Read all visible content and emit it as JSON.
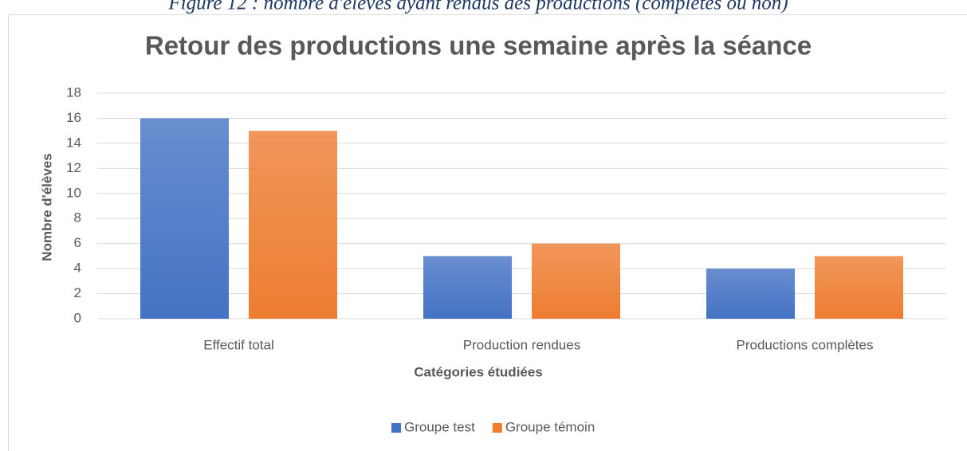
{
  "caption": "Figure 12 : nombre d'élèves ayant rendus des productions (complètes ou non)",
  "chart_data": {
    "type": "bar",
    "title": "Retour des productions une semaine après la séance",
    "x_label": "Catégories étudiées",
    "y_label": "Nombre d'élèves",
    "categories": [
      "Effectif total",
      "Production rendues",
      "Productions complètes"
    ],
    "series": [
      {
        "name": "Groupe test",
        "color": "#4472c4",
        "values": [
          16,
          5,
          4
        ]
      },
      {
        "name": "Groupe témoin",
        "color": "#ed7d31",
        "values": [
          15,
          6,
          5
        ]
      }
    ],
    "ylim": [
      0,
      18
    ],
    "yticks": [
      0,
      2,
      4,
      6,
      8,
      10,
      12,
      14,
      16,
      18
    ],
    "grid": true,
    "legend": "bottom"
  }
}
